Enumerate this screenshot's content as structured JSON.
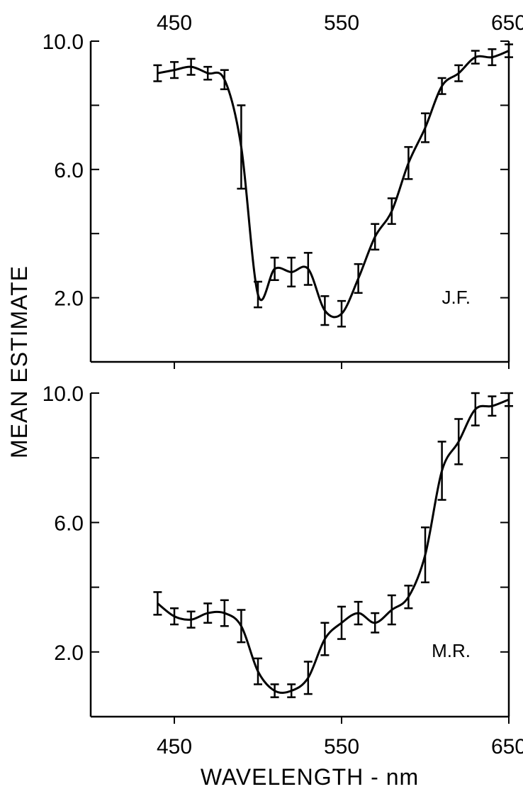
{
  "ylabel": "MEAN ESTIMATE",
  "xlabel": "WAVELENGTH - nm",
  "chart_data": [
    {
      "type": "line",
      "panel_label": "J.F.",
      "xlim": [
        400,
        650
      ],
      "ylim": [
        0,
        10
      ],
      "x_ticks": [
        450,
        550,
        650
      ],
      "x_tick_labels": [
        "450",
        "550",
        "650"
      ],
      "x_tick_labels_position": "top",
      "y_tick_labels": [
        {
          "value": 10,
          "label": "10.0"
        },
        {
          "value": 6,
          "label": "6.0"
        },
        {
          "value": 2,
          "label": "2.0"
        }
      ],
      "y_minor_ticks": [
        8,
        4
      ],
      "grid": false,
      "series": [
        {
          "x": [
            440,
            450,
            460,
            470,
            480,
            490,
            500,
            510,
            520,
            530,
            540,
            550,
            560,
            570,
            580,
            590,
            600,
            610,
            620,
            630,
            640,
            650
          ],
          "y": [
            9.0,
            9.1,
            9.2,
            9.0,
            8.8,
            6.7,
            2.1,
            2.9,
            2.8,
            2.9,
            1.6,
            1.5,
            2.6,
            3.9,
            4.7,
            6.2,
            7.3,
            8.6,
            9.0,
            9.5,
            9.5,
            9.7
          ],
          "err": [
            0.25,
            0.25,
            0.25,
            0.2,
            0.3,
            1.3,
            0.4,
            0.35,
            0.45,
            0.5,
            0.45,
            0.4,
            0.45,
            0.4,
            0.4,
            0.5,
            0.45,
            0.25,
            0.25,
            0.2,
            0.25,
            0.2
          ]
        }
      ]
    },
    {
      "type": "line",
      "panel_label": "M.R.",
      "xlim": [
        400,
        650
      ],
      "ylim": [
        0,
        10
      ],
      "x_ticks": [
        450,
        550,
        650
      ],
      "x_tick_labels": [
        "450",
        "550",
        "650"
      ],
      "x_tick_labels_position": "bottom",
      "y_tick_labels": [
        {
          "value": 10,
          "label": "10.0"
        },
        {
          "value": 6,
          "label": "6.0"
        },
        {
          "value": 2,
          "label": "2.0"
        }
      ],
      "y_minor_ticks": [
        8,
        4
      ],
      "grid": false,
      "series": [
        {
          "x": [
            440,
            450,
            460,
            470,
            480,
            490,
            500,
            510,
            520,
            530,
            540,
            550,
            560,
            570,
            580,
            590,
            600,
            610,
            620,
            630,
            640,
            650
          ],
          "y": [
            3.5,
            3.1,
            3.0,
            3.2,
            3.2,
            2.8,
            1.4,
            0.8,
            0.8,
            1.2,
            2.4,
            2.9,
            3.2,
            2.9,
            3.3,
            3.7,
            5.0,
            7.6,
            8.5,
            9.5,
            9.6,
            9.8
          ],
          "err": [
            0.35,
            0.25,
            0.25,
            0.3,
            0.4,
            0.5,
            0.4,
            0.2,
            0.2,
            0.5,
            0.5,
            0.5,
            0.35,
            0.3,
            0.45,
            0.35,
            0.85,
            0.9,
            0.7,
            0.5,
            0.3,
            0.2
          ]
        }
      ]
    }
  ]
}
